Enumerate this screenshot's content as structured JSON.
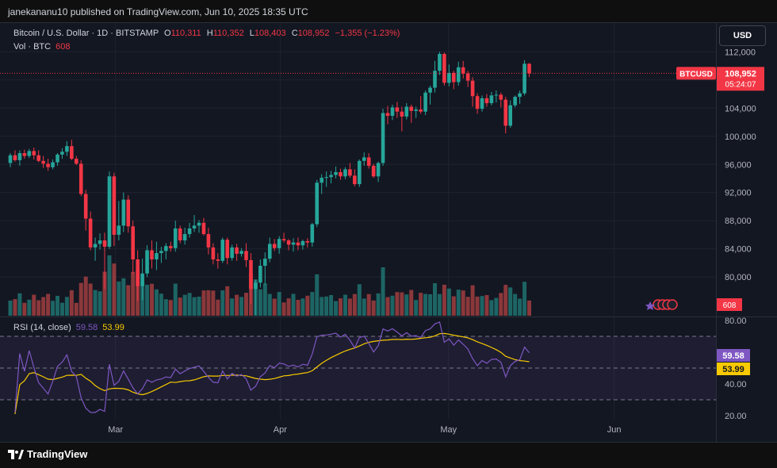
{
  "header": {
    "published": "janekananu10 published on TradingView.com, Jun 10, 2025 18:35 UTC"
  },
  "legend": {
    "symbol": "Bitcoin / U.S. Dollar · 1D · BITSTAMP",
    "open_label": "O",
    "open": "110,311",
    "high_label": "H",
    "high": "110,352",
    "low_label": "L",
    "low": "108,403",
    "close_label": "C",
    "close": "108,952",
    "change": "−1,355 (−1.23%)"
  },
  "volume_legend": {
    "label": "Vol · BTC",
    "value": "608"
  },
  "rsi_legend": {
    "label": "RSI (14, close)",
    "rsi": "59.58",
    "ma": "53.99"
  },
  "currency_button": "USD",
  "price_badge": {
    "symbol": "BTCUSD",
    "price": "108,952",
    "countdown": "05:24:07"
  },
  "volume_badge": "608",
  "rsi_badges": {
    "rsi": "59.58",
    "ma": "53.99"
  },
  "footer": {
    "brand": "TradingView"
  },
  "colors": {
    "up": "#26a69a",
    "down": "#f23645",
    "up_vol": "#26a69a",
    "down_vol": "#ef5350",
    "rsi_line": "#7e57c2",
    "rsi_ma": "#f7c900",
    "background": "#131722",
    "grid": "#1f2330"
  },
  "chart_data": [
    {
      "type": "candlestick",
      "symbol": "BTCUSD",
      "interval": "1D",
      "x_tick_labels": [
        "Mar",
        "Apr",
        "May",
        "Jun"
      ],
      "y_tick_labels": [
        "80,000",
        "84,000",
        "88,000",
        "92,000",
        "96,000",
        "100,000",
        "104,000",
        "108,000",
        "112,000"
      ],
      "ylim": [
        74500,
        113500
      ],
      "candles": [
        [
          96200,
          97600,
          95600,
          97300
        ],
        [
          97300,
          98000,
          96400,
          96600
        ],
        [
          96600,
          98000,
          95800,
          97600
        ],
        [
          97600,
          98100,
          96800,
          97200
        ],
        [
          97200,
          98200,
          96900,
          97900
        ],
        [
          97900,
          98400,
          96700,
          97300
        ],
        [
          97300,
          98000,
          96300,
          96500
        ],
        [
          96500,
          97200,
          95500,
          96100
        ],
        [
          96100,
          96800,
          95100,
          95600
        ],
        [
          95600,
          96700,
          95300,
          96300
        ],
        [
          96300,
          97600,
          95800,
          97400
        ],
        [
          97400,
          98300,
          96800,
          97800
        ],
        [
          97800,
          99300,
          97200,
          98600
        ],
        [
          98600,
          99500,
          96600,
          96800
        ],
        [
          96800,
          97200,
          95900,
          96100
        ],
        [
          96100,
          96600,
          91500,
          91800
        ],
        [
          91800,
          92400,
          86600,
          88300
        ],
        [
          88300,
          89300,
          83800,
          84200
        ],
        [
          84200,
          85600,
          82300,
          84700
        ],
        [
          84700,
          86200,
          83900,
          85200
        ],
        [
          85200,
          86300,
          78300,
          84300
        ],
        [
          84300,
          95000,
          84000,
          94300
        ],
        [
          94300,
          94800,
          84400,
          86000
        ],
        [
          86000,
          90800,
          85200,
          87300
        ],
        [
          87300,
          92000,
          86400,
          91000
        ],
        [
          91000,
          91600,
          86300,
          87200
        ],
        [
          87200,
          88000,
          80400,
          82500
        ],
        [
          82500,
          83800,
          76600,
          78700
        ],
        [
          78700,
          82600,
          76700,
          80500
        ],
        [
          80500,
          84500,
          80000,
          83800
        ],
        [
          83800,
          85200,
          81200,
          82500
        ],
        [
          82500,
          85000,
          81000,
          83400
        ],
        [
          83400,
          84300,
          82000,
          83700
        ],
        [
          83700,
          84800,
          82500,
          84400
        ],
        [
          84400,
          85000,
          83600,
          84100
        ],
        [
          84100,
          88000,
          83600,
          86900
        ],
        [
          86900,
          87300,
          84800,
          85200
        ],
        [
          85200,
          87000,
          84600,
          86100
        ],
        [
          86100,
          87700,
          85600,
          86900
        ],
        [
          86900,
          88800,
          86400,
          87300
        ],
        [
          87300,
          88100,
          86300,
          87700
        ],
        [
          87700,
          88400,
          85900,
          86100
        ],
        [
          86100,
          87000,
          83200,
          84200
        ],
        [
          84200,
          84800,
          81800,
          82500
        ],
        [
          82500,
          83400,
          81200,
          82300
        ],
        [
          82300,
          85600,
          82000,
          85300
        ],
        [
          85300,
          85600,
          81800,
          82700
        ],
        [
          82700,
          84600,
          82300,
          84200
        ],
        [
          84200,
          84700,
          82300,
          83300
        ],
        [
          83300,
          84100,
          82900,
          83700
        ],
        [
          83700,
          84800,
          81400,
          82400
        ],
        [
          82400,
          83400,
          76200,
          78300
        ],
        [
          78300,
          79600,
          74600,
          79200
        ],
        [
          79200,
          82500,
          78500,
          81600
        ],
        [
          81600,
          83500,
          78900,
          82600
        ],
        [
          82600,
          85600,
          82100,
          84700
        ],
        [
          84700,
          85400,
          83700,
          84100
        ],
        [
          84100,
          85800,
          83300,
          85400
        ],
        [
          85400,
          86300,
          84900,
          85200
        ],
        [
          85200,
          85400,
          83800,
          84600
        ],
        [
          84600,
          85500,
          83600,
          84900
        ],
        [
          84900,
          85600,
          83800,
          84500
        ],
        [
          84500,
          85300,
          83900,
          85100
        ],
        [
          85100,
          85500,
          84200,
          84900
        ],
        [
          84900,
          87700,
          84300,
          87500
        ],
        [
          87500,
          93800,
          87100,
          93400
        ],
        [
          93400,
          94600,
          91800,
          94100
        ],
        [
          94100,
          95000,
          92800,
          94200
        ],
        [
          94200,
          95100,
          93300,
          94500
        ],
        [
          94500,
          95700,
          94000,
          94900
        ],
        [
          94900,
          95400,
          93800,
          94300
        ],
        [
          94300,
          95600,
          93900,
          95300
        ],
        [
          95300,
          96200,
          94100,
          94400
        ],
        [
          94400,
          95300,
          92900,
          93200
        ],
        [
          93200,
          96700,
          92800,
          96500
        ],
        [
          96500,
          97700,
          95800,
          97000
        ],
        [
          97000,
          97600,
          95400,
          95800
        ],
        [
          95800,
          96100,
          94100,
          94300
        ],
        [
          94300,
          96400,
          93500,
          96200
        ],
        [
          96200,
          103900,
          95800,
          103300
        ],
        [
          103300,
          104300,
          101700,
          102900
        ],
        [
          102900,
          104500,
          102300,
          104100
        ],
        [
          104100,
          104900,
          102600,
          103500
        ],
        [
          103500,
          104200,
          100700,
          102800
        ],
        [
          102800,
          104700,
          102400,
          104200
        ],
        [
          104200,
          104500,
          101900,
          103600
        ],
        [
          103600,
          104200,
          102600,
          103800
        ],
        [
          103800,
          105700,
          103200,
          103500
        ],
        [
          103500,
          106500,
          103000,
          106200
        ],
        [
          106200,
          107200,
          104500,
          106900
        ],
        [
          106900,
          110700,
          106200,
          109300
        ],
        [
          109300,
          112000,
          108700,
          111700
        ],
        [
          111700,
          111900,
          107200,
          107600
        ],
        [
          107600,
          110200,
          107100,
          109000
        ],
        [
          109000,
          109300,
          106700,
          107700
        ],
        [
          107700,
          110600,
          107200,
          109800
        ],
        [
          109800,
          110700,
          108200,
          108900
        ],
        [
          108900,
          109300,
          107000,
          107900
        ],
        [
          107900,
          108400,
          104200,
          105700
        ],
        [
          105700,
          106100,
          103200,
          103900
        ],
        [
          103900,
          105800,
          103500,
          105400
        ],
        [
          105400,
          106000,
          104200,
          104700
        ],
        [
          104700,
          106300,
          104400,
          105800
        ],
        [
          105800,
          106500,
          104800,
          105900
        ],
        [
          105900,
          106200,
          104100,
          105200
        ],
        [
          105200,
          105600,
          100400,
          101500
        ],
        [
          101500,
          105100,
          101200,
          104400
        ],
        [
          104400,
          105800,
          104100,
          105600
        ],
        [
          105600,
          106500,
          104600,
          106100
        ],
        [
          106100,
          110800,
          105800,
          110300
        ],
        [
          110300,
          110400,
          108400,
          108952
        ]
      ],
      "volume_badge": 608
    },
    {
      "type": "line",
      "name": "RSI (14, close)",
      "y_tick_labels": [
        "20.00",
        "40.00",
        "80.00"
      ],
      "ylim": [
        18,
        82
      ],
      "levels": [
        70,
        50,
        30
      ],
      "series": [
        {
          "name": "RSI",
          "last": 59.58
        },
        {
          "name": "MA",
          "last": 53.99
        }
      ]
    }
  ]
}
